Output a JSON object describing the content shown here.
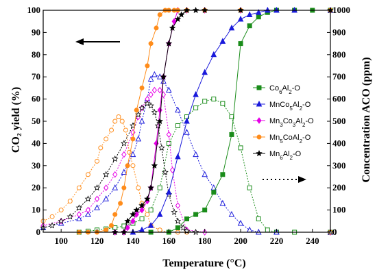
{
  "chart_data": {
    "type": "line",
    "xlabel": "Temperature (°C)",
    "ylabel_left": "CO₂ yield (%)",
    "ylabel_right": "Concentration ACO (ppm)",
    "xlim": [
      90,
      250
    ],
    "ylim_left": [
      0,
      100
    ],
    "ylim_right": [
      0,
      1000
    ],
    "x_ticks": [
      100,
      120,
      140,
      160,
      180,
      200,
      220,
      240
    ],
    "y_ticks_left": [
      0,
      10,
      20,
      30,
      40,
      50,
      60,
      70,
      80,
      90,
      100
    ],
    "y_ticks_right": [
      0,
      100,
      200,
      300,
      400,
      500,
      600,
      700,
      800,
      900,
      1000
    ],
    "grid": false,
    "legend_position": "right-center",
    "legend": [
      {
        "id": "co6",
        "base": "Co",
        "sub1": "6",
        "mid": "Al",
        "sub2": "2",
        "tail": "-O",
        "color": "#1a8c1a",
        "marker": "square"
      },
      {
        "id": "mnco5",
        "base": "MnCo",
        "sub1": "5",
        "mid": "Al",
        "sub2": "2",
        "tail": "-O",
        "color": "#1a1adb",
        "marker": "triangle"
      },
      {
        "id": "mn3co3",
        "base": "Mn",
        "sub1": "3",
        "mid": "Co",
        "sub2": "3",
        "mid2": "Al",
        "sub3": "2",
        "tail": "-O",
        "color": "#e600e6",
        "marker": "diamond"
      },
      {
        "id": "mn5co",
        "base": "Mn",
        "sub1": "5",
        "mid": "CoAl",
        "sub2": "2",
        "tail": "-O",
        "color": "#ff8c1a",
        "marker": "circle"
      },
      {
        "id": "mn6",
        "base": "Mn",
        "sub1": "6",
        "mid": "Al",
        "sub2": "2",
        "tail": "-O",
        "color": "#000000",
        "marker": "star"
      }
    ],
    "series_co2": [
      {
        "ref": "co6",
        "x": [
          150,
          160,
          165,
          170,
          175,
          180,
          185,
          190,
          195,
          200,
          205,
          210,
          215,
          220,
          230,
          240,
          250
        ],
        "y": [
          0,
          0,
          2,
          6,
          8,
          10,
          18,
          26,
          44,
          85,
          93,
          97,
          99,
          100,
          100,
          100,
          100
        ]
      },
      {
        "ref": "mnco5",
        "x": [
          140,
          145,
          150,
          155,
          160,
          165,
          170,
          175,
          180,
          185,
          190,
          195,
          200,
          205,
          210,
          215,
          220,
          230,
          250
        ],
        "y": [
          0,
          1,
          3,
          8,
          18,
          34,
          50,
          62,
          72,
          80,
          86,
          92,
          96,
          98,
          99,
          100,
          100,
          100,
          100
        ]
      },
      {
        "ref": "mn3co3",
        "x": [
          130,
          135,
          137,
          140,
          142,
          145,
          148,
          150,
          153,
          155,
          157,
          160,
          163,
          165,
          170,
          180,
          200,
          250
        ],
        "y": [
          0,
          0,
          2,
          5,
          8,
          10,
          14,
          20,
          40,
          55,
          70,
          85,
          95,
          100,
          100,
          100,
          100,
          100
        ]
      },
      {
        "ref": "mn5co",
        "x": [
          110,
          115,
          120,
          125,
          128,
          130,
          133,
          135,
          137,
          140,
          142,
          145,
          148,
          150,
          153,
          155,
          158,
          160,
          163,
          165,
          170,
          180,
          200,
          250
        ],
        "y": [
          0,
          0,
          0,
          1,
          3,
          8,
          13,
          20,
          30,
          42,
          55,
          65,
          75,
          85,
          92,
          98,
          100,
          100,
          100,
          100,
          100,
          100,
          100,
          100
        ]
      },
      {
        "ref": "mn6",
        "x": [
          130,
          135,
          137,
          140,
          142,
          145,
          148,
          150,
          152,
          155,
          157,
          160,
          162,
          165,
          167,
          170,
          175,
          180,
          200,
          250
        ],
        "y": [
          0,
          0,
          5,
          8,
          10,
          12,
          15,
          20,
          30,
          50,
          70,
          85,
          92,
          96,
          98,
          100,
          100,
          100,
          100,
          100
        ]
      }
    ],
    "series_aco": [
      {
        "ref": "co6",
        "x": [
          110,
          115,
          120,
          125,
          130,
          135,
          140,
          145,
          150,
          155,
          160,
          165,
          170,
          175,
          180,
          185,
          190,
          195,
          200,
          205,
          210,
          215,
          220,
          230,
          250
        ],
        "y": [
          0,
          5,
          10,
          15,
          20,
          28,
          40,
          60,
          100,
          200,
          400,
          480,
          520,
          560,
          590,
          600,
          580,
          520,
          380,
          200,
          60,
          10,
          0,
          0,
          0
        ]
      },
      {
        "ref": "mnco5",
        "x": [
          90,
          100,
          110,
          115,
          120,
          125,
          130,
          135,
          140,
          143,
          145,
          148,
          150,
          152,
          155,
          157,
          160,
          165,
          170,
          175,
          180,
          185,
          190,
          195,
          200,
          205,
          210,
          220,
          250
        ],
        "y": [
          20,
          40,
          60,
          80,
          110,
          150,
          200,
          270,
          350,
          420,
          500,
          600,
          690,
          710,
          700,
          680,
          640,
          550,
          450,
          350,
          260,
          200,
          130,
          80,
          40,
          10,
          0,
          0,
          0
        ]
      },
      {
        "ref": "mn3co3",
        "x": [
          90,
          100,
          110,
          115,
          120,
          125,
          130,
          135,
          140,
          143,
          145,
          148,
          150,
          152,
          155,
          157,
          160,
          162,
          165,
          170,
          180,
          250
        ],
        "y": [
          30,
          50,
          80,
          100,
          150,
          200,
          260,
          350,
          450,
          520,
          560,
          600,
          620,
          640,
          640,
          620,
          440,
          280,
          120,
          10,
          0,
          0
        ]
      },
      {
        "ref": "mn5co",
        "x": [
          90,
          95,
          100,
          105,
          110,
          115,
          120,
          122,
          125,
          128,
          130,
          132,
          134,
          136,
          138,
          140,
          143,
          145,
          148,
          150,
          155,
          160,
          165,
          170,
          250
        ],
        "y": [
          50,
          70,
          100,
          140,
          200,
          260,
          320,
          380,
          420,
          460,
          500,
          520,
          500,
          460,
          360,
          300,
          200,
          130,
          80,
          30,
          10,
          0,
          0,
          0,
          0
        ]
      },
      {
        "ref": "mn6",
        "x": [
          90,
          95,
          100,
          105,
          110,
          115,
          120,
          125,
          130,
          135,
          140,
          143,
          145,
          148,
          150,
          152,
          154,
          156,
          158,
          160,
          163,
          165,
          168,
          170,
          175,
          250
        ],
        "y": [
          20,
          30,
          50,
          70,
          110,
          150,
          200,
          260,
          330,
          400,
          480,
          530,
          560,
          580,
          570,
          540,
          480,
          380,
          270,
          170,
          90,
          50,
          20,
          5,
          0,
          0
        ]
      }
    ]
  }
}
